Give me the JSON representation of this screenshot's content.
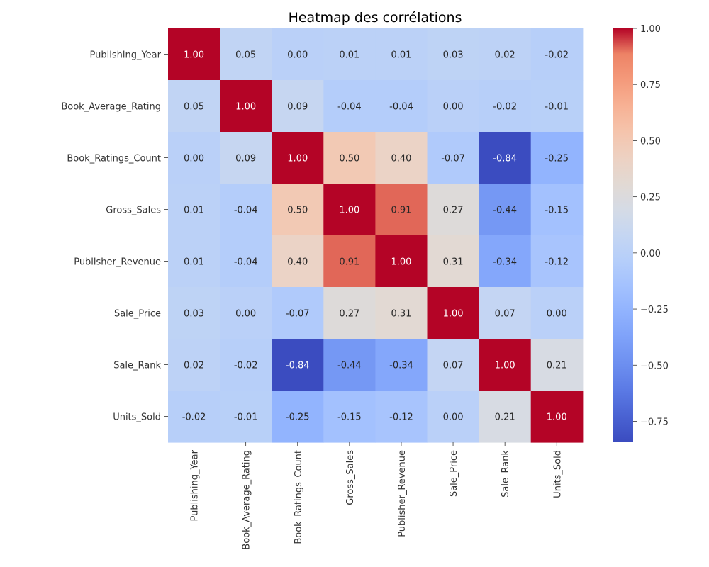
{
  "chart_data": {
    "type": "heatmap",
    "title": "Heatmap des corrélations",
    "xlabel": "",
    "ylabel": "",
    "colormap": "coolwarm",
    "value_format": "2 decimals",
    "x_labels": [
      "Publishing_Year",
      "Book_Average_Rating",
      "Book_Ratings_Count",
      "Gross_Sales",
      "Publisher_Revenue",
      "Sale_Price",
      "Sale_Rank",
      "Units_Sold"
    ],
    "y_labels": [
      "Publishing_Year",
      "Book_Average_Rating",
      "Book_Ratings_Count",
      "Gross_Sales",
      "Publisher_Revenue",
      "Sale_Price",
      "Sale_Rank",
      "Units_Sold"
    ],
    "matrix": [
      [
        1.0,
        0.05,
        0.0,
        0.01,
        0.01,
        0.03,
        0.02,
        -0.02
      ],
      [
        0.05,
        1.0,
        0.09,
        -0.04,
        -0.04,
        0.0,
        -0.02,
        -0.01
      ],
      [
        0.0,
        0.09,
        1.0,
        0.5,
        0.4,
        -0.07,
        -0.84,
        -0.25
      ],
      [
        0.01,
        -0.04,
        0.5,
        1.0,
        0.91,
        0.27,
        -0.44,
        -0.15
      ],
      [
        0.01,
        -0.04,
        0.4,
        0.91,
        1.0,
        0.31,
        -0.34,
        -0.12
      ],
      [
        0.03,
        0.0,
        -0.07,
        0.27,
        0.31,
        1.0,
        0.07,
        0.0
      ],
      [
        0.02,
        -0.02,
        -0.84,
        -0.44,
        -0.34,
        0.07,
        1.0,
        0.21
      ],
      [
        -0.02,
        -0.01,
        -0.25,
        -0.15,
        -0.12,
        0.0,
        0.21,
        1.0
      ]
    ],
    "colorbar": {
      "range": [
        -0.84,
        1.0
      ],
      "ticks": [
        1.0,
        0.75,
        0.5,
        0.25,
        0.0,
        -0.25,
        -0.5,
        -0.75
      ],
      "tick_labels": [
        "1.00",
        "0.75",
        "0.50",
        "0.25",
        "0.00",
        "−0.25",
        "−0.50",
        "−0.75"
      ]
    }
  }
}
